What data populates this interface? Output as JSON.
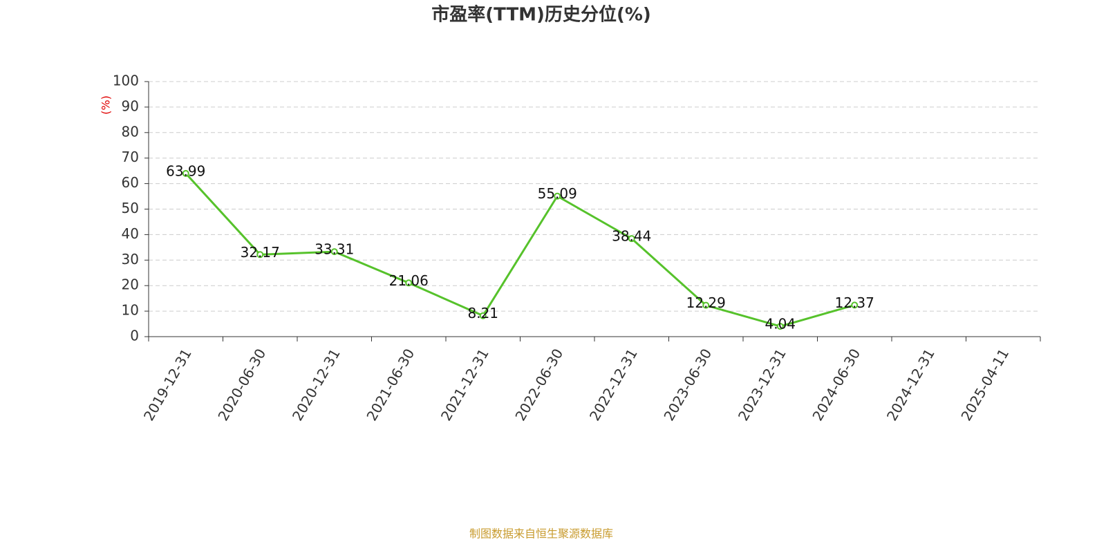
{
  "chart_data": {
    "type": "line",
    "title": "市盈率(TTM)历史分位(%)",
    "y_label": "(%)",
    "categories": [
      "2019-12-31",
      "2020-06-30",
      "2020-12-31",
      "2021-06-30",
      "2021-12-31",
      "2022-06-30",
      "2022-12-31",
      "2023-06-30",
      "2023-12-31",
      "2024-06-30",
      "2024-12-31",
      "2025-04-11"
    ],
    "values": [
      63.99,
      32.17,
      33.31,
      21.06,
      8.21,
      55.09,
      38.44,
      12.29,
      4.04,
      12.37,
      null,
      null
    ],
    "color": "#56c22b",
    "ylim": [
      0,
      100
    ],
    "yticks": [
      0,
      10,
      20,
      30,
      40,
      50,
      60,
      70,
      80,
      90,
      100
    ],
    "grid": true,
    "source": "制图数据来自恒生聚源数据库"
  }
}
